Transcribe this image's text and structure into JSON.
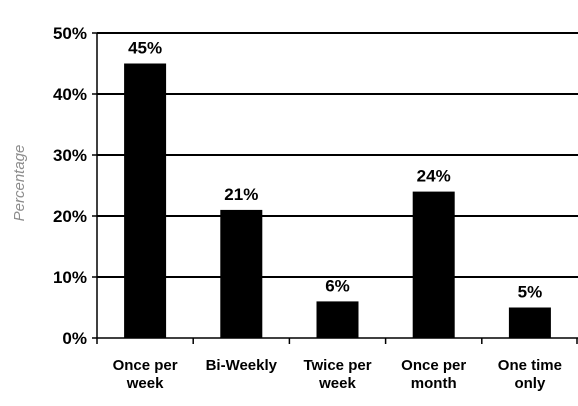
{
  "chart_data": {
    "type": "bar",
    "title": "",
    "xlabel": "",
    "ylabel": "Percentage",
    "categories": [
      [
        "Once per",
        "week"
      ],
      [
        "Bi-Weekly"
      ],
      [
        "Twice per",
        "week"
      ],
      [
        "Once per",
        "month"
      ],
      [
        "One time",
        "only"
      ]
    ],
    "values": [
      45,
      21,
      6,
      24,
      5
    ],
    "data_labels": [
      "45%",
      "21%",
      "6%",
      "24%",
      "5%"
    ],
    "ylim": [
      0,
      50
    ],
    "yticks": [
      0,
      10,
      20,
      30,
      40,
      50
    ],
    "ytick_labels": [
      "0%",
      "10%",
      "20%",
      "30%",
      "40%",
      "50%"
    ],
    "grid": true,
    "legend": "none",
    "colors": {
      "bar": "#000000",
      "gridline": "#000000",
      "axis_title": "#8c8c8c"
    }
  }
}
